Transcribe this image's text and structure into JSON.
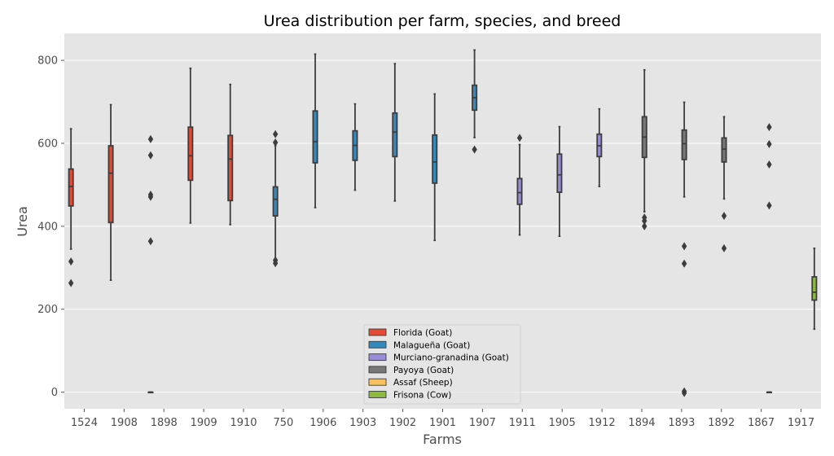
{
  "chart_data": {
    "type": "box",
    "title": "Urea distribution per farm, species, and breed",
    "xlabel": "Farms",
    "ylabel": "Urea",
    "ylim": [
      -40,
      865
    ],
    "yticks": [
      0,
      200,
      400,
      600,
      800
    ],
    "grid": true,
    "legend_position": "bottom-center",
    "categories": [
      "1524",
      "1908",
      "1898",
      "1909",
      "1910",
      "750",
      "1906",
      "1903",
      "1902",
      "1901",
      "1907",
      "1911",
      "1905",
      "1912",
      "1894",
      "1893",
      "1892",
      "1867",
      "1917"
    ],
    "series": [
      {
        "name": "Florida (Goat)",
        "color": "#E24A33"
      },
      {
        "name": "Malagueña (Goat)",
        "color": "#348ABD"
      },
      {
        "name": "Murciano-granadina (Goat)",
        "color": "#988ED5"
      },
      {
        "name": "Payoya (Goat)",
        "color": "#777777"
      },
      {
        "name": "Assaf (Sheep)",
        "color": "#FBC15E"
      },
      {
        "name": "Frisona (Cow)",
        "color": "#8EBA42"
      }
    ],
    "boxes": [
      {
        "category": "1524",
        "series": 0,
        "q1": 449,
        "median": 496,
        "q3": 538,
        "whislo": 345,
        "whishi": 635,
        "fliers": [
          315,
          263
        ]
      },
      {
        "category": "1908",
        "series": 0,
        "q1": 409,
        "median": 528,
        "q3": 594,
        "whislo": 270,
        "whishi": 693,
        "fliers": []
      },
      {
        "category": "1898",
        "series": 0,
        "q1": 0,
        "median": 0,
        "q3": 0,
        "whislo": 0,
        "whishi": 0,
        "fliers": [
          610,
          571,
          476,
          471,
          364
        ]
      },
      {
        "category": "1909",
        "series": 0,
        "q1": 511,
        "median": 570,
        "q3": 639,
        "whislo": 408,
        "whishi": 781,
        "fliers": []
      },
      {
        "category": "1910",
        "series": 0,
        "q1": 462,
        "median": 562,
        "q3": 619,
        "whislo": 404,
        "whishi": 742,
        "fliers": []
      },
      {
        "category": "750",
        "series": 1,
        "q1": 425,
        "median": 465,
        "q3": 495,
        "whislo": 322,
        "whishi": 594,
        "fliers": [
          622,
          602,
          318,
          311
        ]
      },
      {
        "category": "1906",
        "series": 1,
        "q1": 553,
        "median": 604,
        "q3": 678,
        "whislo": 445,
        "whishi": 815,
        "fliers": []
      },
      {
        "category": "1903",
        "series": 1,
        "q1": 559,
        "median": 595,
        "q3": 630,
        "whislo": 487,
        "whishi": 695,
        "fliers": []
      },
      {
        "category": "1902",
        "series": 1,
        "q1": 568,
        "median": 627,
        "q3": 673,
        "whislo": 461,
        "whishi": 792,
        "fliers": []
      },
      {
        "category": "1901",
        "series": 1,
        "q1": 504,
        "median": 555,
        "q3": 620,
        "whislo": 366,
        "whishi": 719,
        "fliers": []
      },
      {
        "category": "1907",
        "series": 1,
        "q1": 680,
        "median": 710,
        "q3": 740,
        "whislo": 614,
        "whishi": 825,
        "fliers": [
          585
        ]
      },
      {
        "category": "1911",
        "series": 2,
        "q1": 453,
        "median": 481,
        "q3": 515,
        "whislo": 379,
        "whishi": 597,
        "fliers": [
          613
        ]
      },
      {
        "category": "1905",
        "series": 2,
        "q1": 482,
        "median": 524,
        "q3": 574,
        "whislo": 376,
        "whishi": 640,
        "fliers": []
      },
      {
        "category": "1912",
        "series": 2,
        "q1": 568,
        "median": 594,
        "q3": 622,
        "whislo": 496,
        "whishi": 683,
        "fliers": []
      },
      {
        "category": "1894",
        "series": 3,
        "q1": 566,
        "median": 615,
        "q3": 664,
        "whislo": 435,
        "whishi": 777,
        "fliers": [
          421,
          413,
          400
        ]
      },
      {
        "category": "1893",
        "series": 3,
        "q1": 561,
        "median": 599,
        "q3": 632,
        "whislo": 471,
        "whishi": 699,
        "fliers": [
          352,
          310,
          2,
          -2
        ]
      },
      {
        "category": "1892",
        "series": 3,
        "q1": 555,
        "median": 586,
        "q3": 613,
        "whislo": 466,
        "whishi": 664,
        "fliers": [
          425,
          347
        ]
      },
      {
        "category": "1867",
        "series": 4,
        "q1": 0,
        "median": 0,
        "q3": 0,
        "whislo": 0,
        "whishi": 0,
        "fliers": [
          639,
          598,
          549,
          450
        ]
      },
      {
        "category": "1917",
        "series": 5,
        "q1": 222,
        "median": 241,
        "q3": 278,
        "whislo": 152,
        "whishi": 347,
        "fliers": []
      }
    ]
  }
}
